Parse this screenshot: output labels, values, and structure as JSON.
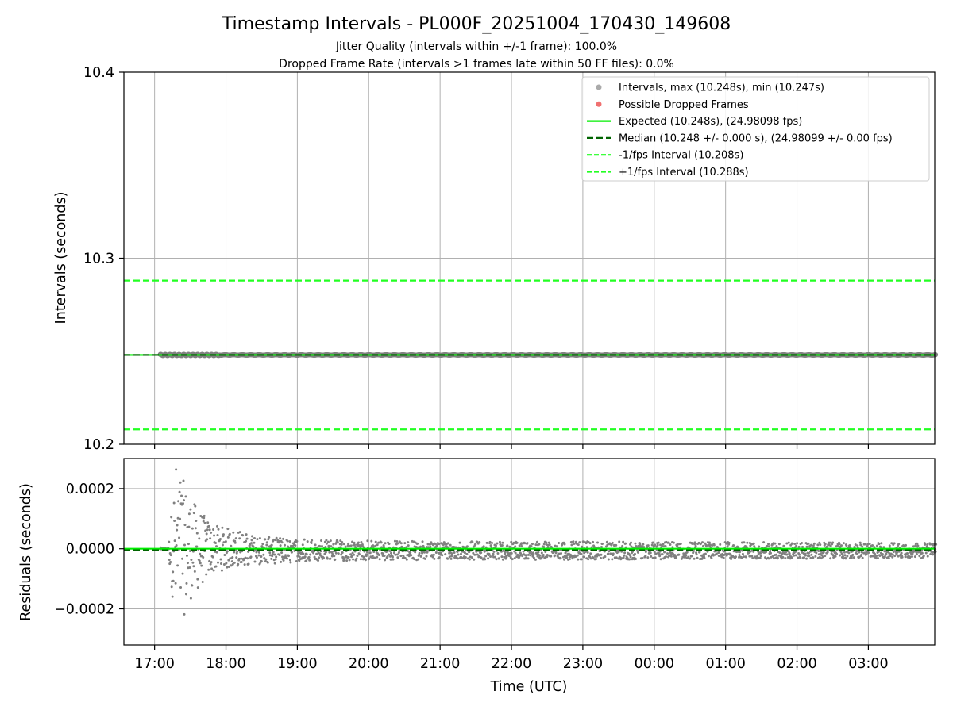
{
  "chart_data": {
    "type": "scatter",
    "title": "Timestamp Intervals - PL000F_20251004_170430_149608",
    "subtitles": [
      "Jitter Quality (intervals within +/-1 frame): 100.0%",
      "Dropped Frame Rate (intervals >1 frames late within 50 FF files): 0.0%"
    ],
    "top_panel": {
      "ylabel": "Intervals (seconds)",
      "ylim": [
        10.2,
        10.4
      ],
      "yticks": [
        "10.2",
        "10.3",
        "10.4"
      ],
      "grid": true,
      "legend_position": "top-right",
      "legend": [
        "Intervals, max (10.248s), min (10.247s)",
        "Possible Dropped Frames",
        "Expected (10.248s), (24.98098 fps)",
        "Median (10.248 +/- 0.000 s), (24.98099 +/- 0.00 fps)",
        "-1/fps Interval (10.208s)",
        "+1/fps Interval (10.288s)"
      ],
      "series": [
        {
          "kind": "scatter",
          "color": "#808080",
          "x_range_hours": [
            17.08,
            27.95
          ],
          "value": 10.248,
          "min": 10.247,
          "max": 10.248
        },
        {
          "kind": "scatter",
          "color": "#f07070",
          "points": []
        },
        {
          "kind": "line",
          "color": "#00ee00",
          "style": "solid",
          "value": 10.248
        },
        {
          "kind": "line",
          "color": "#006400",
          "style": "dashed",
          "value": 10.248
        },
        {
          "kind": "line",
          "color": "#22ff22",
          "style": "dashed",
          "value": 10.208
        },
        {
          "kind": "line",
          "color": "#22ff22",
          "style": "dashed",
          "value": 10.288
        }
      ]
    },
    "bottom_panel": {
      "ylabel": "Residuals (seconds)",
      "ylim": [
        -0.00032,
        0.0003
      ],
      "yticks": [
        "−0.0002",
        "0.0000",
        "0.0002"
      ],
      "ytick_values": [
        -0.0002,
        0,
        0.0002
      ],
      "grid": true,
      "series": [
        {
          "kind": "scatter",
          "color": "#808080",
          "description_only": false,
          "envelope": [
            {
              "x": 17.2,
              "amp": 3e-05
            },
            {
              "x": 17.3,
              "amp": 0.00029
            },
            {
              "x": 17.5,
              "amp": 0.00017
            },
            {
              "x": 17.8,
              "amp": 8e-05
            },
            {
              "x": 18.5,
              "amp": 4.5e-05
            },
            {
              "x": 19.5,
              "amp": 3.5e-05
            },
            {
              "x": 21.0,
              "amp": 3e-05
            },
            {
              "x": 23.0,
              "amp": 3e-05
            },
            {
              "x": 27.95,
              "amp": 2.5e-05
            }
          ]
        },
        {
          "kind": "line",
          "color": "#00ee00",
          "style": "solid",
          "value": 0
        },
        {
          "kind": "line",
          "color": "#006400",
          "style": "dashed",
          "value": -5e-06
        }
      ]
    },
    "xlabel": "Time (UTC)",
    "xlim_hours": [
      16.57,
      27.93
    ],
    "xticks": [
      {
        "label": "17:00",
        "hour": 17
      },
      {
        "label": "18:00",
        "hour": 18
      },
      {
        "label": "19:00",
        "hour": 19
      },
      {
        "label": "20:00",
        "hour": 20
      },
      {
        "label": "21:00",
        "hour": 21
      },
      {
        "label": "22:00",
        "hour": 22
      },
      {
        "label": "23:00",
        "hour": 23
      },
      {
        "label": "00:00",
        "hour": 24
      },
      {
        "label": "01:00",
        "hour": 25
      },
      {
        "label": "02:00",
        "hour": 26
      },
      {
        "label": "03:00",
        "hour": 27
      }
    ]
  }
}
